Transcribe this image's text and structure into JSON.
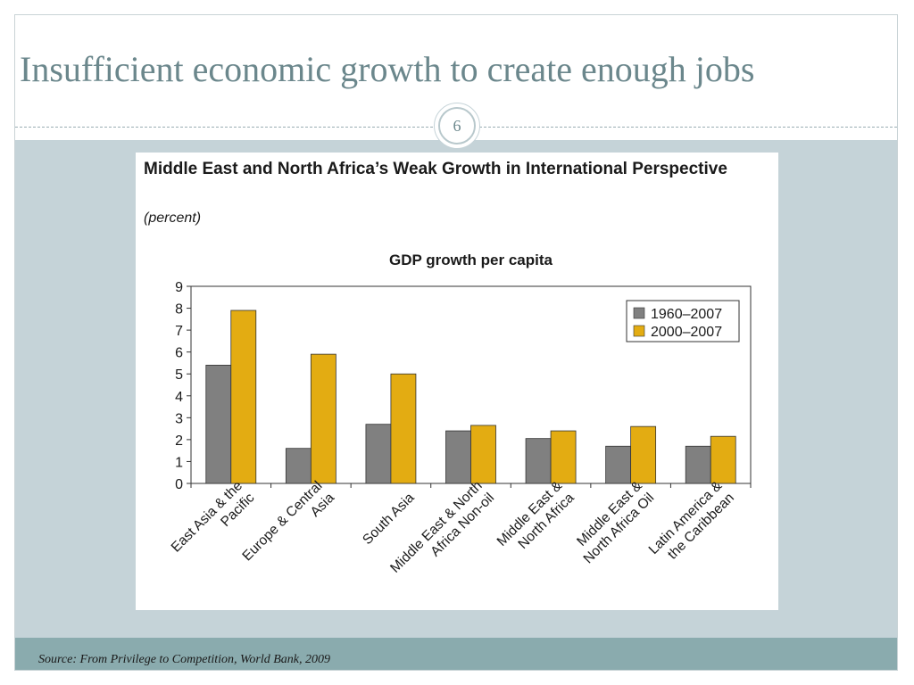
{
  "slide": {
    "title": "Insufficient economic growth to create enough jobs",
    "page_number": "6",
    "source": "Source:  From Privilege to Competition, World Bank, 2009"
  },
  "colors": {
    "series_1": "#808080",
    "series_2": "#e3ac12"
  },
  "chart_data": {
    "type": "bar",
    "title": "Middle East and North Africa’s Weak Growth in International Perspective",
    "unit": "(percent)",
    "subtitle": "GDP growth per capita",
    "xlabel": "",
    "ylabel": "",
    "ylim": [
      0,
      9
    ],
    "yticks": [
      0,
      1,
      2,
      3,
      4,
      5,
      6,
      7,
      8,
      9
    ],
    "grid": false,
    "legend_position": "top-right",
    "categories": [
      [
        "East Asia & the",
        "Pacific"
      ],
      [
        "Europe & Central",
        "Asia"
      ],
      [
        "South Asia"
      ],
      [
        "Middle East & North",
        "Africa Non-oil"
      ],
      [
        "Middle East &",
        "North Africa"
      ],
      [
        "Middle East &",
        "North Africa Oil"
      ],
      [
        "Latin America &",
        "the Caribbean"
      ]
    ],
    "series": [
      {
        "name": "1960–2007",
        "values": [
          5.4,
          1.6,
          2.7,
          2.4,
          2.05,
          1.7,
          1.7
        ]
      },
      {
        "name": "2000–2007",
        "values": [
          7.9,
          5.9,
          5.0,
          2.65,
          2.4,
          2.6,
          2.15
        ]
      }
    ]
  }
}
